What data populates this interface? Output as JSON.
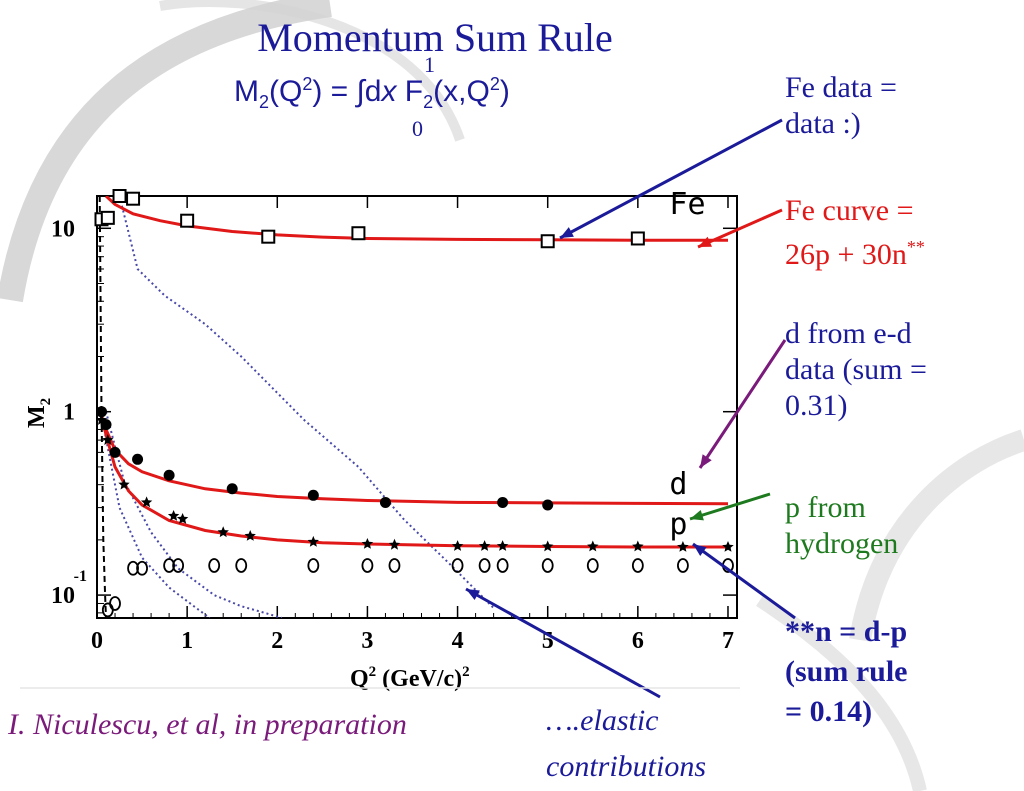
{
  "slide": {
    "title": "Momentum Sum Rule",
    "formula": {
      "lhs_symbol": "M",
      "lhs_sub": "2",
      "lhs_arg_open": "(Q",
      "lhs_arg_sup": "2",
      "lhs_arg_close": ") = ",
      "integral": "∫",
      "upper_limit": "1",
      "lower_limit": "0",
      "d": "d",
      "x": "x",
      "f_symbol": " F",
      "f_sub": "2",
      "f_arg_open": "(x,Q",
      "f_arg_sup": "2",
      "f_arg_close": ")"
    },
    "notes": {
      "fe_data": [
        "Fe data =",
        "data :)"
      ],
      "fe_curve": [
        "Fe curve =",
        "26p + 30n"
      ],
      "fe_curve_sup": "**",
      "d_data": [
        "d from e-d",
        "data (sum =",
        "0.31)"
      ],
      "p_data": [
        "p from",
        "hydrogen"
      ],
      "n_rule": [
        "**n = d-p",
        "(sum rule",
        "= 0.14)"
      ],
      "elastic": [
        "….elastic",
        "contributions"
      ]
    },
    "citation": "I. Niculescu, et al, in preparation",
    "colors": {
      "title": "#1b1b9a",
      "red_note": "#e01818",
      "green_note": "#1e7a1e",
      "citation": "#7a1a7a",
      "fit_curve": "#e01818",
      "elastic_dotted": "#4848a8"
    }
  },
  "chart_data": {
    "type": "scatter",
    "xlabel": "Q",
    "xlabel_sup": "2",
    "xlabel_unit": " (GeV/c)",
    "xlabel_unit_sup": "2",
    "ylabel": "M",
    "ylabel_sub": "2",
    "xlim": [
      0,
      7.1
    ],
    "ylim": [
      0.075,
      15
    ],
    "yscale": "log",
    "x_ticks": [
      0,
      1,
      2,
      3,
      4,
      5,
      6,
      7
    ],
    "x_tick_labels": [
      "0",
      "1",
      "2",
      "3",
      "4",
      "5",
      "6",
      "7"
    ],
    "y_ticks": [
      {
        "value": 10,
        "label": "10",
        "sup": ""
      },
      {
        "value": 1,
        "label": "1",
        "sup": ""
      },
      {
        "value": 0.1,
        "label": "10",
        "sup": "-1"
      }
    ],
    "grid": false,
    "series": [
      {
        "name": "Fe",
        "marker": "square",
        "x": [
          0.05,
          0.12,
          0.25,
          0.4,
          1.0,
          1.9,
          2.9,
          5.0,
          6.0
        ],
        "y": [
          11.2,
          11.4,
          15.0,
          14.5,
          11.0,
          9.0,
          9.4,
          8.5,
          8.8
        ]
      },
      {
        "name": "d",
        "marker": "filled-circle",
        "x": [
          0.05,
          0.1,
          0.2,
          0.45,
          0.8,
          1.5,
          2.4,
          3.2,
          4.5,
          5.0
        ],
        "y": [
          1.0,
          0.85,
          0.6,
          0.55,
          0.45,
          0.38,
          0.35,
          0.32,
          0.32,
          0.31
        ]
      },
      {
        "name": "p",
        "marker": "star",
        "x": [
          0.05,
          0.12,
          0.3,
          0.55,
          0.85,
          0.95,
          1.4,
          1.7,
          2.4,
          3.0,
          3.3,
          4.0,
          4.3,
          4.5,
          5.0,
          5.5,
          6.0,
          6.5,
          7.0
        ],
        "y": [
          0.9,
          0.7,
          0.4,
          0.32,
          0.27,
          0.26,
          0.22,
          0.21,
          0.195,
          0.19,
          0.188,
          0.185,
          0.185,
          0.185,
          0.184,
          0.184,
          0.184,
          0.183,
          0.183
        ]
      },
      {
        "name": "n",
        "marker": "open-circle",
        "x": [
          0.12,
          0.2,
          0.4,
          0.5,
          0.8,
          0.9,
          1.3,
          1.6,
          2.4,
          3.0,
          3.3,
          4.0,
          4.3,
          4.5,
          5.0,
          5.5,
          6.0,
          6.5,
          7.0
        ],
        "y": [
          0.083,
          0.09,
          0.14,
          0.14,
          0.145,
          0.145,
          0.145,
          0.145,
          0.145,
          0.145,
          0.145,
          0.145,
          0.145,
          0.145,
          0.145,
          0.145,
          0.145,
          0.145,
          0.145
        ]
      }
    ],
    "fit_curves": [
      {
        "for": "Fe",
        "x": [
          0.1,
          0.2,
          0.4,
          0.7,
          1.0,
          1.5,
          2.0,
          2.5,
          3.0,
          4.0,
          5.0,
          6.0,
          7.0
        ],
        "y": [
          15,
          13.5,
          12.0,
          11.0,
          10.3,
          9.6,
          9.2,
          8.95,
          8.8,
          8.7,
          8.65,
          8.6,
          8.6
        ]
      },
      {
        "for": "d",
        "x": [
          0.05,
          0.1,
          0.2,
          0.35,
          0.5,
          0.8,
          1.2,
          1.6,
          2.0,
          2.5,
          3.0,
          4.0,
          5.0,
          6.0,
          7.0
        ],
        "y": [
          0.95,
          0.8,
          0.62,
          0.52,
          0.47,
          0.42,
          0.38,
          0.36,
          0.345,
          0.335,
          0.328,
          0.32,
          0.318,
          0.316,
          0.315
        ]
      },
      {
        "for": "p",
        "x": [
          0.05,
          0.1,
          0.2,
          0.35,
          0.5,
          0.8,
          1.2,
          1.6,
          2.0,
          2.5,
          3.0,
          4.0,
          5.0,
          6.0,
          7.0
        ],
        "y": [
          0.95,
          0.75,
          0.5,
          0.37,
          0.31,
          0.255,
          0.225,
          0.21,
          0.2,
          0.193,
          0.19,
          0.186,
          0.184,
          0.183,
          0.183
        ]
      }
    ],
    "elastic_curves": [
      {
        "style": "dotted",
        "x": [
          0.25,
          0.45,
          0.75,
          1.2,
          1.6,
          2.3,
          2.9,
          3.4,
          3.9,
          4.4
        ],
        "y": [
          15,
          6.0,
          4.3,
          3.0,
          2.0,
          0.9,
          0.5,
          0.26,
          0.15,
          0.085
        ]
      },
      {
        "style": "dotted",
        "x": [
          0.1,
          0.3,
          0.6,
          0.9,
          1.3,
          1.6,
          1.9,
          2.05
        ],
        "y": [
          1.0,
          0.42,
          0.22,
          0.14,
          0.1,
          0.087,
          0.079,
          0.075
        ]
      },
      {
        "style": "dotted",
        "x": [
          0.08,
          0.25,
          0.5,
          0.8,
          1.1,
          1.25
        ],
        "y": [
          0.8,
          0.3,
          0.16,
          0.11,
          0.085,
          0.075
        ]
      },
      {
        "style": "dashed",
        "x": [
          0.03,
          0.05,
          0.07,
          0.09,
          0.1
        ],
        "y": [
          15,
          1.0,
          0.2,
          0.1,
          0.075
        ]
      }
    ],
    "curve_labels": [
      {
        "text": "Fe",
        "x": 6.35,
        "y": 12
      },
      {
        "text": "d",
        "x": 6.35,
        "y": 0.355
      },
      {
        "text": "p",
        "x": 6.35,
        "y": 0.215
      }
    ]
  }
}
